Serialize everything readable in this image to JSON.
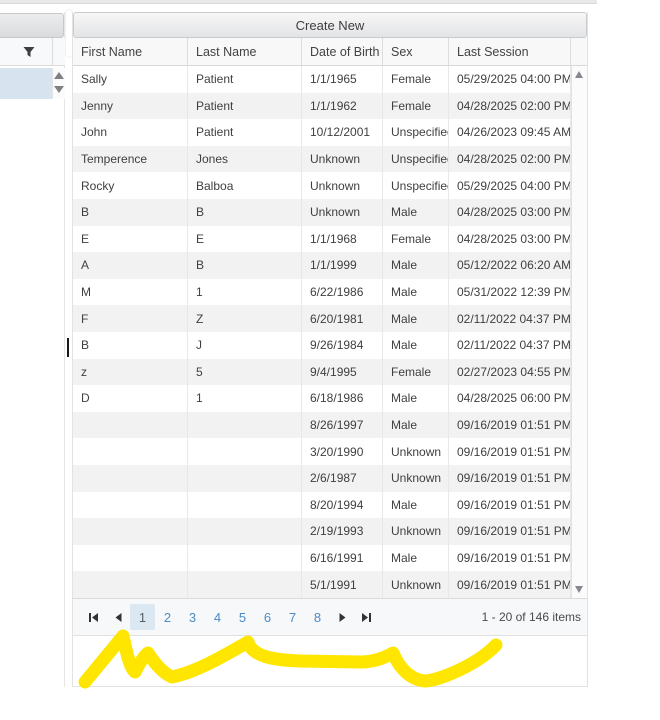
{
  "toolbar": {
    "create_new_label": "Create New"
  },
  "table": {
    "columns": [
      "First Name",
      "Last Name",
      "Date of Birth",
      "Sex",
      "Last Session"
    ],
    "rows": [
      {
        "first": "Sally",
        "last": "Patient",
        "dob": "1/1/1965",
        "sex": "Female",
        "session": "05/29/2025 04:00 PM"
      },
      {
        "first": "Jenny",
        "last": "Patient",
        "dob": "1/1/1962",
        "sex": "Female",
        "session": "04/28/2025 02:00 PM"
      },
      {
        "first": "John",
        "last": "Patient",
        "dob": "10/12/2001",
        "sex": "Unspecified",
        "session": "04/26/2023 09:45 AM"
      },
      {
        "first": "Temperence",
        "last": "Jones",
        "dob": "Unknown",
        "sex": "Unspecified",
        "session": "04/28/2025 02:00 PM"
      },
      {
        "first": "Rocky",
        "last": "Balboa",
        "dob": "Unknown",
        "sex": "Unspecified",
        "session": "05/29/2025 04:00 PM"
      },
      {
        "first": "B",
        "last": "B",
        "dob": "Unknown",
        "sex": "Male",
        "session": "04/28/2025 03:00 PM"
      },
      {
        "first": "E",
        "last": "E",
        "dob": "1/1/1968",
        "sex": "Female",
        "session": "04/28/2025 03:00 PM"
      },
      {
        "first": "A",
        "last": "B",
        "dob": "1/1/1999",
        "sex": "Male",
        "session": "05/12/2022 06:20 AM"
      },
      {
        "first": "M",
        "last": "1",
        "dob": "6/22/1986",
        "sex": "Male",
        "session": "05/31/2022 12:39 PM"
      },
      {
        "first": "F",
        "last": "Z",
        "dob": "6/20/1981",
        "sex": "Male",
        "session": "02/11/2022 04:37 PM"
      },
      {
        "first": "B",
        "last": "J",
        "dob": "9/26/1984",
        "sex": "Male",
        "session": "02/11/2022 04:37 PM"
      },
      {
        "first": "z",
        "last": "5",
        "dob": "9/4/1995",
        "sex": "Female",
        "session": "02/27/2023 04:55 PM"
      },
      {
        "first": "D",
        "last": "1",
        "dob": "6/18/1986",
        "sex": "Male",
        "session": "04/28/2025 06:00 PM"
      },
      {
        "first": "",
        "last": "",
        "dob": "8/26/1997",
        "sex": "Male",
        "session": "09/16/2019 01:51 PM"
      },
      {
        "first": "",
        "last": "",
        "dob": "3/20/1990",
        "sex": "Unknown",
        "session": "09/16/2019 01:51 PM"
      },
      {
        "first": "",
        "last": "",
        "dob": "2/6/1987",
        "sex": "Unknown",
        "session": "09/16/2019 01:51 PM"
      },
      {
        "first": "",
        "last": "",
        "dob": "8/20/1994",
        "sex": "Male",
        "session": "09/16/2019 01:51 PM"
      },
      {
        "first": "",
        "last": "",
        "dob": "2/19/1993",
        "sex": "Unknown",
        "session": "09/16/2019 01:51 PM"
      },
      {
        "first": "",
        "last": "",
        "dob": "6/16/1991",
        "sex": "Male",
        "session": "09/16/2019 01:51 PM"
      },
      {
        "first": "",
        "last": "",
        "dob": "5/1/1991",
        "sex": "Unknown",
        "session": "09/16/2019 01:51 PM"
      }
    ]
  },
  "pager": {
    "pages": [
      "1",
      "2",
      "3",
      "4",
      "5",
      "6",
      "7",
      "8"
    ],
    "selected_page": "1",
    "info": "1 - 20 of 146 items"
  },
  "icons": {
    "left_panel_filter": "funnel-icon",
    "pager": [
      "first-page-icon",
      "previous-page-icon",
      "next-page-icon",
      "last-page-icon"
    ],
    "scrollbars": [
      "scroll-up-icon",
      "scroll-down-icon"
    ]
  },
  "colors": {
    "selected_page_bg": "#dbe7f1",
    "selected_row_bg": "#d7e4f0",
    "page_link_blue": "#4b8bc8",
    "zebra_row": "#f2f2f3",
    "annotation_yellow": "#ffe600"
  },
  "annotation": {
    "type": "yellow-marker-scribble"
  }
}
